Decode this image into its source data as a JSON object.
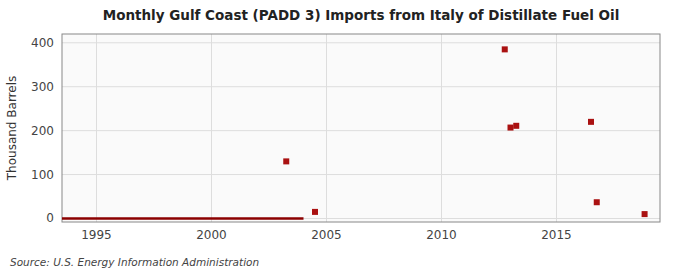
{
  "chart_data": {
    "type": "scatter",
    "title": "Monthly Gulf Coast (PADD 3) Imports from Italy of Distillate Fuel Oil",
    "ylabel": "Thousand Barrels",
    "annotations": [
      "Source: U.S. Energy Information Administration"
    ],
    "xlim": [
      1993.5,
      2019.5
    ],
    "ylim": [
      -8,
      420
    ],
    "xticks": [
      1995,
      2000,
      2005,
      2010,
      2015
    ],
    "yticks": [
      0,
      100,
      200,
      300,
      400
    ],
    "grid": true,
    "series": [
      {
        "type": "line",
        "color": "#8b0000",
        "x": [
          1993.5,
          2004.0
        ],
        "values": [
          0,
          0
        ]
      },
      {
        "type": "scatter",
        "color": "#aa1111",
        "marker": "square",
        "x": [
          2003.25,
          2004.5,
          2012.75,
          2013.0,
          2013.25,
          2016.5,
          2016.75,
          2018.83
        ],
        "values": [
          130,
          15,
          385,
          207,
          211,
          220,
          37,
          10
        ]
      }
    ]
  }
}
